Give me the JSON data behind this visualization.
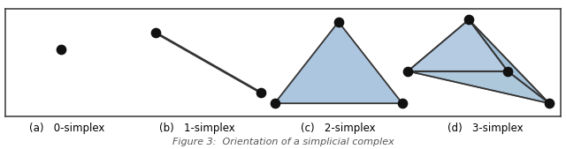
{
  "background_color": "#ffffff",
  "border_color": "#444444",
  "face_color": "#adc6df",
  "face_color_dark": "#8ab0cc",
  "edge_color": "#333333",
  "dot_color": "#111111",
  "dot_size": 55,
  "label_fontsize": 8.5,
  "caption": "Figure 3:  Orientation of a simplicial complex",
  "caption_fontsize": 8,
  "labels": [
    "(a)   0-simplex",
    "(b)   1-simplex",
    "(c)   2-simplex",
    "(d)   3-simplex"
  ]
}
